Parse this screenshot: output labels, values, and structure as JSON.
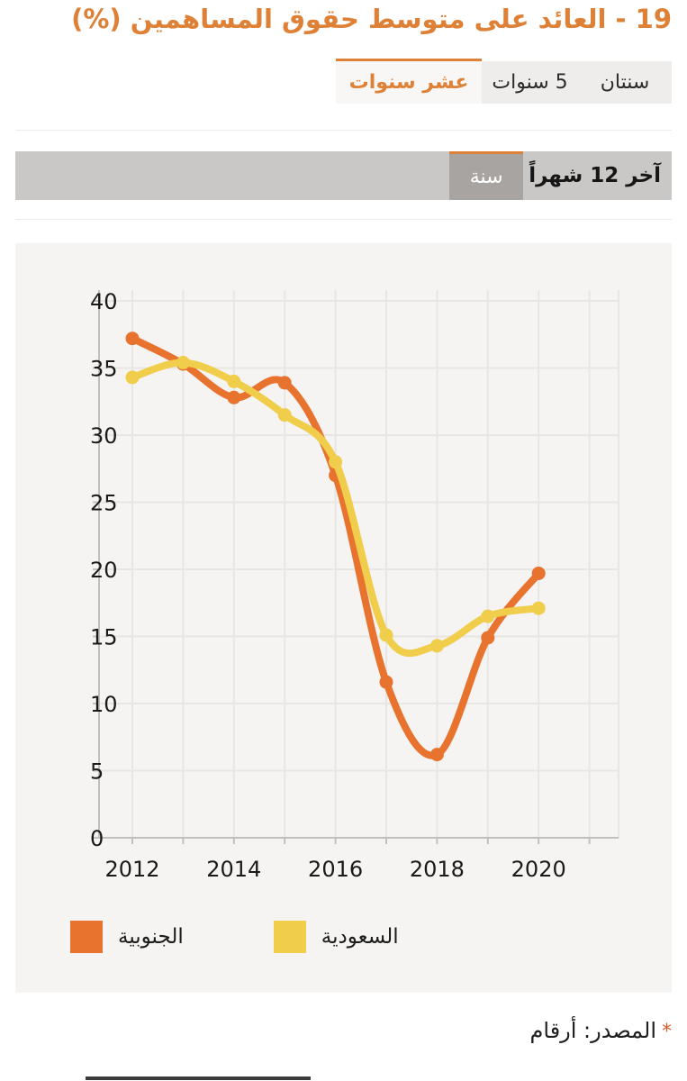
{
  "page": {
    "title": "19 - العائد على متوسط حقوق المساهمين (%)",
    "footer": {
      "asterisk": "*",
      "source_text": "المصدر: أرقام"
    }
  },
  "tabs": {
    "items": [
      {
        "label": "سنتان",
        "active": false
      },
      {
        "label": "5 سنوات",
        "active": false
      },
      {
        "label": "عشر سنوات",
        "active": true
      }
    ]
  },
  "period_bar": {
    "label": "آخر 12 شهراً",
    "selected_button": "سنة"
  },
  "colors": {
    "accent_orange": "#de8136",
    "series_janoubia": "#e8732e",
    "series_saudia": "#f0cd4b",
    "bar_bg": "#cac8c6",
    "bar_button_bg": "#a7a4a2",
    "panel_bg": "#f5f4f2",
    "grid_line": "#e8e6e3",
    "axis_line": "#c2c0bc",
    "text_dark": "#1a1a1a",
    "footnote_asterisk": "#d85b2b",
    "tab_bg": "#efedeb",
    "tab_active_bg": "#f8f7f5"
  },
  "chart_data": {
    "type": "line",
    "x": [
      2012,
      2013,
      2014,
      2015,
      2016,
      2017,
      2018,
      2019,
      2020
    ],
    "grid_years": [
      2012,
      2013,
      2014,
      2015,
      2016,
      2017,
      2018,
      2019,
      2020,
      2021
    ],
    "xtick_labels": [
      "2012",
      "2014",
      "2016",
      "2018",
      "2020"
    ],
    "xtick_years": [
      2012,
      2014,
      2016,
      2018,
      2020
    ],
    "yticks": [
      0,
      5,
      10,
      15,
      20,
      25,
      30,
      35,
      40
    ],
    "ylim": [
      0,
      40
    ],
    "grid": true,
    "legend_position": "bottom",
    "series": [
      {
        "name": "الجنوبية",
        "color": "#e8732e",
        "values": [
          37.2,
          35.3,
          32.8,
          33.9,
          27.0,
          11.6,
          6.2,
          14.9,
          19.7
        ]
      },
      {
        "name": "السعودية",
        "color": "#f0cd4b",
        "values": [
          34.3,
          35.4,
          34.0,
          31.5,
          28.0,
          15.1,
          14.3,
          16.5,
          17.1
        ]
      }
    ]
  }
}
